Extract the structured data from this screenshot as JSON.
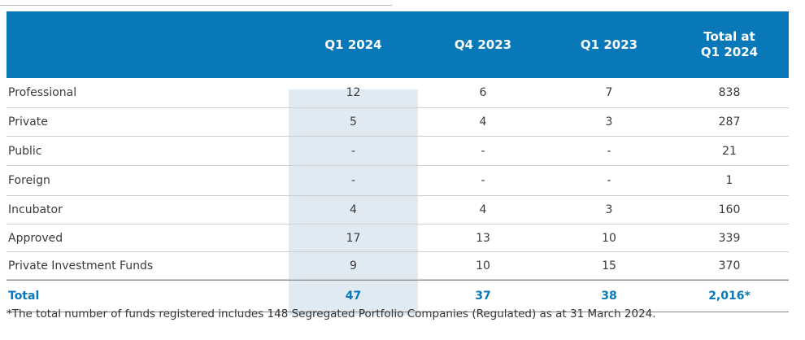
{
  "table": {
    "headers": [
      "Q1 2024",
      "Q4 2023",
      "Q1 2023",
      "Total at\nQ1 2024"
    ],
    "rows": [
      {
        "label": "Professional",
        "values": [
          "12",
          "6",
          "7",
          "838"
        ]
      },
      {
        "label": "Private",
        "values": [
          "5",
          "4",
          "3",
          "287"
        ]
      },
      {
        "label": "Public",
        "values": [
          "-",
          "-",
          "-",
          "21"
        ]
      },
      {
        "label": "Foreign",
        "values": [
          "-",
          "-",
          "-",
          "1"
        ]
      },
      {
        "label": "Incubator",
        "values": [
          "4",
          "4",
          "3",
          "160"
        ]
      },
      {
        "label": "Approved",
        "values": [
          "17",
          "13",
          "10",
          "339"
        ]
      },
      {
        "label": "Private Investment Funds",
        "values": [
          "9",
          "10",
          "15",
          "370"
        ]
      }
    ],
    "total": {
      "label": "Total",
      "values": [
        "47",
        "37",
        "38",
        "2,016*"
      ]
    }
  },
  "footnote": "*The total number of funds registered includes 148 Segregated Portfolio Companies (Regulated) as at 31 March 2024.",
  "colors": {
    "header_bg": "#0978b8",
    "highlight_col": "#dfeaf3",
    "total_text": "#0978b8"
  }
}
